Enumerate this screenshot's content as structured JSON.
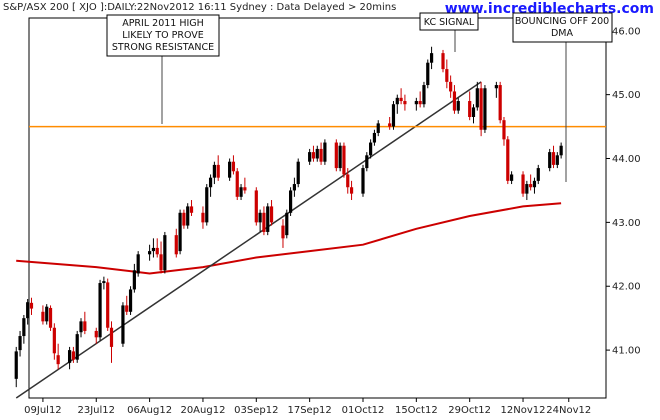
{
  "header": {
    "title": "S&P/ASX 200 [ XJO ]:DAILY:22Nov2012 16:11 Sydney : Data Delayed > 20mins",
    "brand": "www.incrediblecharts.com"
  },
  "colors": {
    "up": "#000000",
    "down": "#cc0000",
    "resistance": "#ff8c00",
    "ma": "#cc0000",
    "trendline": "#333333"
  },
  "annotations": [
    {
      "text": [
        "APRIL 2011 HIGH",
        "LIKELY TO PROVE",
        "STRONG RESISTANCE"
      ]
    },
    {
      "text": [
        "KC SIGNAL"
      ]
    },
    {
      "text": [
        "BOUNCING OFF 200",
        "DMA"
      ]
    }
  ],
  "chart_data": {
    "type": "candlestick",
    "x_ticks": [
      "09Jul12",
      "23Jul12",
      "06Aug12",
      "20Aug12",
      "03Sep12",
      "17Sep12",
      "01Oct12",
      "15Oct12",
      "29Oct12",
      "12Nov12",
      "24Nov12"
    ],
    "y_ticks": [
      "41.00",
      "42.00",
      "43.00",
      "44.00",
      "45.00",
      "46.00"
    ],
    "ylim": [
      40.25,
      46.2
    ],
    "resistance_level": 44.5,
    "candles": [
      {
        "date": "2012-07-02",
        "o": 40.55,
        "h": 41.05,
        "l": 40.42,
        "c": 40.98
      },
      {
        "date": "2012-07-03",
        "o": 41.0,
        "h": 41.3,
        "l": 40.9,
        "c": 41.22
      },
      {
        "date": "2012-07-04",
        "o": 41.22,
        "h": 41.55,
        "l": 41.1,
        "c": 41.5
      },
      {
        "date": "2012-07-05",
        "o": 41.5,
        "h": 41.8,
        "l": 41.4,
        "c": 41.75
      },
      {
        "date": "2012-07-06",
        "o": 41.74,
        "h": 41.82,
        "l": 41.55,
        "c": 41.65
      },
      {
        "date": "2012-07-09",
        "o": 41.6,
        "h": 41.7,
        "l": 41.4,
        "c": 41.45
      },
      {
        "date": "2012-07-10",
        "o": 41.45,
        "h": 41.72,
        "l": 41.4,
        "c": 41.68
      },
      {
        "date": "2012-07-11",
        "o": 41.66,
        "h": 41.7,
        "l": 41.3,
        "c": 41.35
      },
      {
        "date": "2012-07-12",
        "o": 41.35,
        "h": 41.42,
        "l": 40.85,
        "c": 40.95
      },
      {
        "date": "2012-07-13",
        "o": 40.92,
        "h": 41.1,
        "l": 40.7,
        "c": 40.78
      },
      {
        "date": "2012-07-16",
        "o": 40.8,
        "h": 41.05,
        "l": 40.7,
        "c": 41.0
      },
      {
        "date": "2012-07-17",
        "o": 40.98,
        "h": 41.05,
        "l": 40.8,
        "c": 40.85
      },
      {
        "date": "2012-07-18",
        "o": 40.85,
        "h": 41.3,
        "l": 40.8,
        "c": 41.25
      },
      {
        "date": "2012-07-19",
        "o": 41.28,
        "h": 41.5,
        "l": 41.2,
        "c": 41.45
      },
      {
        "date": "2012-07-20",
        "o": 41.45,
        "h": 41.6,
        "l": 41.25,
        "c": 41.3
      },
      {
        "date": "2012-07-23",
        "o": 41.3,
        "h": 41.35,
        "l": 41.1,
        "c": 41.2
      },
      {
        "date": "2012-07-24",
        "o": 41.2,
        "h": 42.1,
        "l": 41.15,
        "c": 42.05
      },
      {
        "date": "2012-07-25",
        "o": 42.05,
        "h": 42.15,
        "l": 41.95,
        "c": 42.08
      },
      {
        "date": "2012-07-26",
        "o": 42.06,
        "h": 42.12,
        "l": 41.3,
        "c": 41.35
      },
      {
        "date": "2012-07-27",
        "o": 41.35,
        "h": 41.45,
        "l": 40.8,
        "c": 41.05
      },
      {
        "date": "2012-07-30",
        "o": 41.1,
        "h": 41.75,
        "l": 41.05,
        "c": 41.7
      },
      {
        "date": "2012-07-31",
        "o": 41.7,
        "h": 41.85,
        "l": 41.55,
        "c": 41.6
      },
      {
        "date": "2012-08-01",
        "o": 41.6,
        "h": 42.0,
        "l": 41.55,
        "c": 41.95
      },
      {
        "date": "2012-08-02",
        "o": 41.95,
        "h": 42.35,
        "l": 41.9,
        "c": 42.25
      },
      {
        "date": "2012-08-03",
        "o": 42.2,
        "h": 42.55,
        "l": 42.15,
        "c": 42.5
      },
      {
        "date": "2012-08-06",
        "o": 42.5,
        "h": 42.65,
        "l": 42.4,
        "c": 42.55
      },
      {
        "date": "2012-08-07",
        "o": 42.55,
        "h": 42.75,
        "l": 42.45,
        "c": 42.6
      },
      {
        "date": "2012-08-08",
        "o": 42.6,
        "h": 42.75,
        "l": 42.45,
        "c": 42.5
      },
      {
        "date": "2012-08-09",
        "o": 42.5,
        "h": 42.7,
        "l": 42.2,
        "c": 42.25
      },
      {
        "date": "2012-08-10",
        "o": 42.25,
        "h": 42.85,
        "l": 42.2,
        "c": 42.8
      },
      {
        "date": "2012-08-13",
        "o": 42.8,
        "h": 42.9,
        "l": 42.45,
        "c": 42.5
      },
      {
        "date": "2012-08-14",
        "o": 42.55,
        "h": 43.2,
        "l": 42.5,
        "c": 43.15
      },
      {
        "date": "2012-08-15",
        "o": 43.15,
        "h": 43.2,
        "l": 42.9,
        "c": 42.95
      },
      {
        "date": "2012-08-16",
        "o": 42.95,
        "h": 43.3,
        "l": 42.9,
        "c": 43.25
      },
      {
        "date": "2012-08-17",
        "o": 43.25,
        "h": 43.35,
        "l": 43.1,
        "c": 43.15
      },
      {
        "date": "2012-08-20",
        "o": 43.15,
        "h": 43.25,
        "l": 42.9,
        "c": 43.0
      },
      {
        "date": "2012-08-21",
        "o": 43.0,
        "h": 43.6,
        "l": 42.95,
        "c": 43.55
      },
      {
        "date": "2012-08-22",
        "o": 43.55,
        "h": 43.75,
        "l": 43.4,
        "c": 43.7
      },
      {
        "date": "2012-08-23",
        "o": 43.7,
        "h": 43.95,
        "l": 43.6,
        "c": 43.9
      },
      {
        "date": "2012-08-24",
        "o": 43.9,
        "h": 44.05,
        "l": 43.65,
        "c": 43.7
      },
      {
        "date": "2012-08-27",
        "o": 43.7,
        "h": 44.0,
        "l": 43.65,
        "c": 43.95
      },
      {
        "date": "2012-08-28",
        "o": 43.95,
        "h": 44.05,
        "l": 43.75,
        "c": 43.8
      },
      {
        "date": "2012-08-29",
        "o": 43.8,
        "h": 43.85,
        "l": 43.35,
        "c": 43.4
      },
      {
        "date": "2012-08-30",
        "o": 43.4,
        "h": 43.6,
        "l": 43.35,
        "c": 43.55
      },
      {
        "date": "2012-08-31",
        "o": 43.55,
        "h": 43.7,
        "l": 43.45,
        "c": 43.5
      },
      {
        "date": "2012-09-03",
        "o": 43.5,
        "h": 43.55,
        "l": 42.95,
        "c": 43.0
      },
      {
        "date": "2012-09-04",
        "o": 43.0,
        "h": 43.2,
        "l": 42.85,
        "c": 43.15
      },
      {
        "date": "2012-09-05",
        "o": 43.15,
        "h": 43.25,
        "l": 42.8,
        "c": 42.85
      },
      {
        "date": "2012-09-06",
        "o": 42.85,
        "h": 43.3,
        "l": 42.8,
        "c": 43.25
      },
      {
        "date": "2012-09-07",
        "o": 43.25,
        "h": 43.35,
        "l": 42.95,
        "c": 43.0
      },
      {
        "date": "2012-09-10",
        "o": 42.95,
        "h": 43.05,
        "l": 42.6,
        "c": 42.75
      },
      {
        "date": "2012-09-11",
        "o": 42.8,
        "h": 43.2,
        "l": 42.75,
        "c": 43.15
      },
      {
        "date": "2012-09-12",
        "o": 43.15,
        "h": 43.55,
        "l": 43.1,
        "c": 43.5
      },
      {
        "date": "2012-09-13",
        "o": 43.5,
        "h": 43.7,
        "l": 43.4,
        "c": 43.6
      },
      {
        "date": "2012-09-14",
        "o": 43.6,
        "h": 44.0,
        "l": 43.55,
        "c": 43.95
      },
      {
        "date": "2012-09-17",
        "o": 43.95,
        "h": 44.15,
        "l": 43.9,
        "c": 44.1
      },
      {
        "date": "2012-09-18",
        "o": 44.1,
        "h": 44.2,
        "l": 43.95,
        "c": 44.0
      },
      {
        "date": "2012-09-19",
        "o": 44.0,
        "h": 44.2,
        "l": 43.95,
        "c": 44.15
      },
      {
        "date": "2012-09-20",
        "o": 44.15,
        "h": 44.25,
        "l": 43.9,
        "c": 43.95
      },
      {
        "date": "2012-09-21",
        "o": 43.95,
        "h": 44.3,
        "l": 43.9,
        "c": 44.25
      },
      {
        "date": "2012-09-24",
        "o": 44.25,
        "h": 44.3,
        "l": 43.8,
        "c": 43.85
      },
      {
        "date": "2012-09-25",
        "o": 43.85,
        "h": 44.25,
        "l": 43.8,
        "c": 44.2
      },
      {
        "date": "2012-09-26",
        "o": 44.2,
        "h": 44.25,
        "l": 43.7,
        "c": 43.75
      },
      {
        "date": "2012-09-27",
        "o": 43.75,
        "h": 43.85,
        "l": 43.45,
        "c": 43.55
      },
      {
        "date": "2012-09-28",
        "o": 43.55,
        "h": 43.65,
        "l": 43.35,
        "c": 43.45
      },
      {
        "date": "2012-10-01",
        "o": 43.45,
        "h": 43.9,
        "l": 43.4,
        "c": 43.85
      },
      {
        "date": "2012-10-02",
        "o": 43.85,
        "h": 44.1,
        "l": 43.8,
        "c": 44.05
      },
      {
        "date": "2012-10-03",
        "o": 44.05,
        "h": 44.3,
        "l": 44.0,
        "c": 44.25
      },
      {
        "date": "2012-10-04",
        "o": 44.25,
        "h": 44.45,
        "l": 44.2,
        "c": 44.4
      },
      {
        "date": "2012-10-05",
        "o": 44.4,
        "h": 44.6,
        "l": 44.35,
        "c": 44.55
      },
      {
        "date": "2012-10-08",
        "o": 44.55,
        "h": 44.65,
        "l": 44.45,
        "c": 44.5
      },
      {
        "date": "2012-10-09",
        "o": 44.5,
        "h": 44.9,
        "l": 44.45,
        "c": 44.85
      },
      {
        "date": "2012-10-10",
        "o": 44.85,
        "h": 45.0,
        "l": 44.7,
        "c": 44.95
      },
      {
        "date": "2012-10-11",
        "o": 44.95,
        "h": 45.1,
        "l": 44.85,
        "c": 44.9
      },
      {
        "date": "2012-10-12",
        "o": 44.9,
        "h": 45.0,
        "l": 44.75,
        "c": 44.85
      },
      {
        "date": "2012-10-15",
        "o": 44.85,
        "h": 44.95,
        "l": 44.75,
        "c": 44.9
      },
      {
        "date": "2012-10-16",
        "o": 44.9,
        "h": 45.05,
        "l": 44.8,
        "c": 44.85
      },
      {
        "date": "2012-10-17",
        "o": 44.85,
        "h": 45.2,
        "l": 44.8,
        "c": 45.15
      },
      {
        "date": "2012-10-18",
        "o": 45.15,
        "h": 45.55,
        "l": 45.1,
        "c": 45.5
      },
      {
        "date": "2012-10-19",
        "o": 45.5,
        "h": 45.75,
        "l": 45.4,
        "c": 45.65
      },
      {
        "date": "2012-10-22",
        "o": 45.65,
        "h": 45.7,
        "l": 45.35,
        "c": 45.4
      },
      {
        "date": "2012-10-23",
        "o": 45.4,
        "h": 45.55,
        "l": 45.1,
        "c": 45.2
      },
      {
        "date": "2012-10-24",
        "o": 45.2,
        "h": 45.3,
        "l": 44.95,
        "c": 45.05
      },
      {
        "date": "2012-10-25",
        "o": 45.05,
        "h": 45.15,
        "l": 44.7,
        "c": 44.75
      },
      {
        "date": "2012-10-26",
        "o": 44.75,
        "h": 44.95,
        "l": 44.7,
        "c": 44.9
      },
      {
        "date": "2012-10-29",
        "o": 44.9,
        "h": 45.05,
        "l": 44.6,
        "c": 44.65
      },
      {
        "date": "2012-10-30",
        "o": 44.65,
        "h": 44.85,
        "l": 44.55,
        "c": 44.8
      },
      {
        "date": "2012-10-31",
        "o": 44.8,
        "h": 45.2,
        "l": 44.75,
        "c": 45.1
      },
      {
        "date": "2012-11-01",
        "o": 45.1,
        "h": 45.2,
        "l": 44.35,
        "c": 44.45
      },
      {
        "date": "2012-11-02",
        "o": 44.45,
        "h": 45.15,
        "l": 44.4,
        "c": 45.1
      },
      {
        "date": "2012-11-05",
        "o": 45.1,
        "h": 45.2,
        "l": 44.95,
        "c": 45.15
      },
      {
        "date": "2012-11-06",
        "o": 45.15,
        "h": 45.2,
        "l": 44.55,
        "c": 44.6
      },
      {
        "date": "2012-11-07",
        "o": 44.6,
        "h": 44.65,
        "l": 44.2,
        "c": 44.3
      },
      {
        "date": "2012-11-08",
        "o": 44.3,
        "h": 44.35,
        "l": 43.6,
        "c": 43.65
      },
      {
        "date": "2012-11-09",
        "o": 43.65,
        "h": 43.8,
        "l": 43.6,
        "c": 43.75
      },
      {
        "date": "2012-11-12",
        "o": 43.75,
        "h": 43.8,
        "l": 43.4,
        "c": 43.45
      },
      {
        "date": "2012-11-13",
        "o": 43.45,
        "h": 43.65,
        "l": 43.35,
        "c": 43.6
      },
      {
        "date": "2012-11-14",
        "o": 43.6,
        "h": 43.75,
        "l": 43.5,
        "c": 43.55
      },
      {
        "date": "2012-11-15",
        "o": 43.55,
        "h": 43.7,
        "l": 43.45,
        "c": 43.65
      },
      {
        "date": "2012-11-16",
        "o": 43.65,
        "h": 43.9,
        "l": 43.6,
        "c": 43.85
      },
      {
        "date": "2012-11-19",
        "o": 43.85,
        "h": 44.15,
        "l": 43.8,
        "c": 44.1
      },
      {
        "date": "2012-11-20",
        "o": 44.1,
        "h": 44.2,
        "l": 43.85,
        "c": 43.9
      },
      {
        "date": "2012-11-21",
        "o": 43.9,
        "h": 44.1,
        "l": 43.85,
        "c": 44.05
      },
      {
        "date": "2012-11-22",
        "o": 44.05,
        "h": 44.25,
        "l": 44.0,
        "c": 44.2
      }
    ],
    "ma200": [
      {
        "date": "2012-07-02",
        "v": 42.4
      },
      {
        "date": "2012-07-23",
        "v": 42.3
      },
      {
        "date": "2012-08-06",
        "v": 42.2
      },
      {
        "date": "2012-08-20",
        "v": 42.3
      },
      {
        "date": "2012-09-03",
        "v": 42.45
      },
      {
        "date": "2012-09-17",
        "v": 42.55
      },
      {
        "date": "2012-10-01",
        "v": 42.65
      },
      {
        "date": "2012-10-15",
        "v": 42.9
      },
      {
        "date": "2012-10-29",
        "v": 43.1
      },
      {
        "date": "2012-11-12",
        "v": 43.25
      },
      {
        "date": "2012-11-22",
        "v": 43.3
      }
    ],
    "trendline": [
      {
        "date": "2012-07-02",
        "v": 40.25
      },
      {
        "date": "2012-11-01",
        "v": 45.2
      }
    ]
  }
}
